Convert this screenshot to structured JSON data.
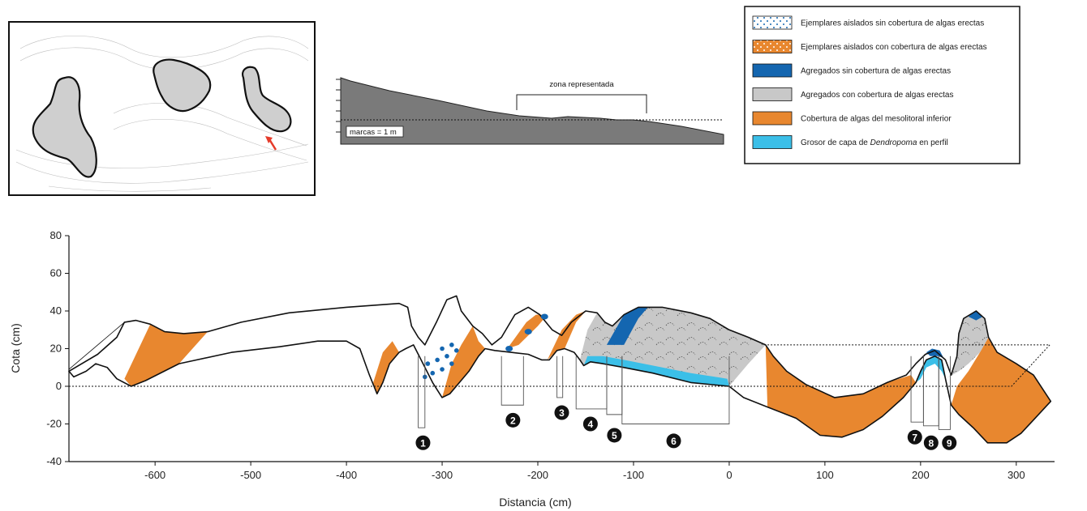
{
  "chart_data": {
    "type": "area",
    "xlabel": "Distancia (cm)",
    "ylabel": "Cota (cm)",
    "xlim": [
      -690,
      340
    ],
    "ylim": [
      -40,
      80
    ],
    "x_ticks": [
      -600,
      -500,
      -400,
      -300,
      -200,
      -100,
      0,
      100,
      200,
      300
    ],
    "y_ticks": [
      80,
      60,
      40,
      20,
      0,
      -20,
      -40
    ],
    "reference_line": 0,
    "profile": [
      {
        "x": -690,
        "y": 8
      },
      {
        "x": -660,
        "y": 17
      },
      {
        "x": -640,
        "y": 26
      },
      {
        "x": -632,
        "y": 34
      },
      {
        "x": -620,
        "y": 35
      },
      {
        "x": -605,
        "y": 33
      },
      {
        "x": -590,
        "y": 29
      },
      {
        "x": -570,
        "y": 28
      },
      {
        "x": -545,
        "y": 29
      },
      {
        "x": -510,
        "y": 34
      },
      {
        "x": -460,
        "y": 39
      },
      {
        "x": -400,
        "y": 42
      },
      {
        "x": -345,
        "y": 44
      },
      {
        "x": -336,
        "y": 42
      },
      {
        "x": -332,
        "y": 32
      },
      {
        "x": -325,
        "y": 26
      },
      {
        "x": -318,
        "y": 22
      },
      {
        "x": -306,
        "y": 34
      },
      {
        "x": -295,
        "y": 46
      },
      {
        "x": -285,
        "y": 48
      },
      {
        "x": -280,
        "y": 40
      },
      {
        "x": -268,
        "y": 32
      },
      {
        "x": -258,
        "y": 28
      },
      {
        "x": -248,
        "y": 22
      },
      {
        "x": -238,
        "y": 26
      },
      {
        "x": -224,
        "y": 38
      },
      {
        "x": -210,
        "y": 42
      },
      {
        "x": -198,
        "y": 38
      },
      {
        "x": -185,
        "y": 30
      },
      {
        "x": -175,
        "y": 27
      },
      {
        "x": -165,
        "y": 34
      },
      {
        "x": -150,
        "y": 40
      },
      {
        "x": -138,
        "y": 39
      },
      {
        "x": -130,
        "y": 34
      },
      {
        "x": -122,
        "y": 32
      },
      {
        "x": -110,
        "y": 38
      },
      {
        "x": -95,
        "y": 42
      },
      {
        "x": -70,
        "y": 42
      },
      {
        "x": -40,
        "y": 39
      },
      {
        "x": -20,
        "y": 36
      },
      {
        "x": 0,
        "y": 30
      },
      {
        "x": 20,
        "y": 26
      },
      {
        "x": 38,
        "y": 22
      },
      {
        "x": 46,
        "y": 16
      },
      {
        "x": 60,
        "y": 8
      },
      {
        "x": 80,
        "y": 1
      },
      {
        "x": 110,
        "y": -6
      },
      {
        "x": 140,
        "y": -4
      },
      {
        "x": 165,
        "y": 2
      },
      {
        "x": 185,
        "y": 6
      },
      {
        "x": 195,
        "y": 12
      },
      {
        "x": 205,
        "y": 17
      },
      {
        "x": 215,
        "y": 19
      },
      {
        "x": 226,
        "y": 14
      },
      {
        "x": 232,
        "y": 6
      },
      {
        "x": 238,
        "y": 16
      },
      {
        "x": 240,
        "y": 28
      },
      {
        "x": 245,
        "y": 36
      },
      {
        "x": 258,
        "y": 40
      },
      {
        "x": 267,
        "y": 36
      },
      {
        "x": 271,
        "y": 26
      },
      {
        "x": 280,
        "y": 18
      },
      {
        "x": 300,
        "y": 12
      },
      {
        "x": 318,
        "y": 6
      },
      {
        "x": 336,
        "y": -8
      },
      {
        "x": 305,
        "y": -25
      },
      {
        "x": 290,
        "y": -30
      },
      {
        "x": 270,
        "y": -30
      },
      {
        "x": 255,
        "y": -22
      },
      {
        "x": 240,
        "y": -15
      },
      {
        "x": 232,
        "y": -10
      },
      {
        "x": 226,
        "y": 4
      },
      {
        "x": 222,
        "y": 14
      },
      {
        "x": 215,
        "y": 16
      },
      {
        "x": 206,
        "y": 14
      },
      {
        "x": 200,
        "y": 8
      },
      {
        "x": 195,
        "y": 2
      },
      {
        "x": 182,
        "y": -6
      },
      {
        "x": 160,
        "y": -16
      },
      {
        "x": 140,
        "y": -23
      },
      {
        "x": 118,
        "y": -27
      },
      {
        "x": 95,
        "y": -26
      },
      {
        "x": 70,
        "y": -17
      },
      {
        "x": 40,
        "y": -11
      },
      {
        "x": 15,
        "y": -6
      },
      {
        "x": 0,
        "y": 0
      },
      {
        "x": -40,
        "y": 2
      },
      {
        "x": -80,
        "y": 7
      },
      {
        "x": -110,
        "y": 10
      },
      {
        "x": -132,
        "y": 12
      },
      {
        "x": -145,
        "y": 13
      },
      {
        "x": -152,
        "y": 11
      },
      {
        "x": -156,
        "y": 14
      },
      {
        "x": -162,
        "y": 18
      },
      {
        "x": -172,
        "y": 20
      },
      {
        "x": -180,
        "y": 19
      },
      {
        "x": -188,
        "y": 14
      },
      {
        "x": -196,
        "y": 14
      },
      {
        "x": -210,
        "y": 17
      },
      {
        "x": -228,
        "y": 18
      },
      {
        "x": -245,
        "y": 19
      },
      {
        "x": -255,
        "y": 20
      },
      {
        "x": -262,
        "y": 16
      },
      {
        "x": -272,
        "y": 8
      },
      {
        "x": -282,
        "y": 2
      },
      {
        "x": -292,
        "y": -4
      },
      {
        "x": -300,
        "y": -6
      },
      {
        "x": -310,
        "y": 2
      },
      {
        "x": -322,
        "y": 14
      },
      {
        "x": -330,
        "y": 22
      },
      {
        "x": -338,
        "y": 20
      },
      {
        "x": -345,
        "y": 18
      },
      {
        "x": -355,
        "y": 12
      },
      {
        "x": -362,
        "y": 2
      },
      {
        "x": -368,
        "y": -4
      },
      {
        "x": -376,
        "y": 6
      },
      {
        "x": -386,
        "y": 20
      },
      {
        "x": -400,
        "y": 24
      },
      {
        "x": -430,
        "y": 24
      },
      {
        "x": -470,
        "y": 21
      },
      {
        "x": -520,
        "y": 18
      },
      {
        "x": -575,
        "y": 12
      },
      {
        "x": -610,
        "y": 3
      },
      {
        "x": -625,
        "y": 0
      },
      {
        "x": -640,
        "y": 4
      },
      {
        "x": -650,
        "y": 10
      },
      {
        "x": -662,
        "y": 12
      },
      {
        "x": -672,
        "y": 8
      },
      {
        "x": -685,
        "y": 5
      }
    ],
    "zones": [
      {
        "type": "cobertura_mesolitoral",
        "polygon": [
          [
            -632,
            4
          ],
          [
            -625,
            0
          ],
          [
            -610,
            3
          ],
          [
            -575,
            12
          ],
          [
            -545,
            29
          ],
          [
            -570,
            28
          ],
          [
            -590,
            29
          ],
          [
            -605,
            33
          ]
        ]
      },
      {
        "type": "cobertura_mesolitoral",
        "polygon": [
          [
            -372,
            2
          ],
          [
            -368,
            -4
          ],
          [
            -362,
            2
          ],
          [
            -355,
            12
          ],
          [
            -345,
            18
          ],
          [
            -352,
            24
          ],
          [
            -362,
            18
          ]
        ]
      },
      {
        "type": "cobertura_mesolitoral",
        "polygon": [
          [
            -300,
            -6
          ],
          [
            -292,
            -4
          ],
          [
            -282,
            2
          ],
          [
            -272,
            8
          ],
          [
            -262,
            16
          ],
          [
            -255,
            20
          ],
          [
            -262,
            24
          ],
          [
            -268,
            32
          ],
          [
            -280,
            22
          ],
          [
            -290,
            12
          ]
        ]
      },
      {
        "type": "cobertura_mesolitoral",
        "polygon": [
          [
            -232,
            20
          ],
          [
            -220,
            22
          ],
          [
            -200,
            32
          ],
          [
            -190,
            38
          ],
          [
            -202,
            38
          ],
          [
            -212,
            34
          ]
        ]
      },
      {
        "type": "cobertura_mesolitoral",
        "polygon": [
          [
            -190,
            14
          ],
          [
            -180,
            19
          ],
          [
            -172,
            20
          ],
          [
            -160,
            34
          ],
          [
            -150,
            40
          ],
          [
            -160,
            38
          ],
          [
            -175,
            30
          ]
        ]
      },
      {
        "type": "cobertura_mesolitoral",
        "polygon": [
          [
            40,
            -11
          ],
          [
            70,
            -17
          ],
          [
            95,
            -26
          ],
          [
            118,
            -27
          ],
          [
            140,
            -23
          ],
          [
            160,
            -16
          ],
          [
            182,
            -6
          ],
          [
            195,
            2
          ],
          [
            190,
            6
          ],
          [
            165,
            2
          ],
          [
            140,
            -4
          ],
          [
            110,
            -6
          ],
          [
            80,
            1
          ],
          [
            60,
            8
          ],
          [
            46,
            16
          ],
          [
            38,
            22
          ]
        ]
      },
      {
        "type": "cobertura_mesolitoral",
        "polygon": [
          [
            232,
            -10
          ],
          [
            240,
            -15
          ],
          [
            255,
            -22
          ],
          [
            270,
            -30
          ],
          [
            290,
            -30
          ],
          [
            305,
            -25
          ],
          [
            336,
            -8
          ],
          [
            318,
            6
          ],
          [
            300,
            12
          ],
          [
            280,
            18
          ],
          [
            271,
            26
          ],
          [
            262,
            18
          ],
          [
            250,
            8
          ],
          [
            238,
            0
          ]
        ]
      },
      {
        "type": "agregados_con_algas",
        "polygon": [
          [
            -152,
            11
          ],
          [
            -145,
            13
          ],
          [
            -132,
            12
          ],
          [
            -110,
            10
          ],
          [
            -80,
            7
          ],
          [
            -40,
            2
          ],
          [
            0,
            0
          ],
          [
            20,
            12
          ],
          [
            38,
            22
          ],
          [
            20,
            26
          ],
          [
            0,
            30
          ],
          [
            -20,
            36
          ],
          [
            -40,
            39
          ],
          [
            -70,
            42
          ],
          [
            -95,
            42
          ],
          [
            -110,
            38
          ],
          [
            -122,
            32
          ],
          [
            -130,
            34
          ],
          [
            -138,
            39
          ],
          [
            -148,
            30
          ],
          [
            -156,
            14
          ]
        ]
      },
      {
        "type": "agregados_con_algas",
        "polygon": [
          [
            226,
            4
          ],
          [
            232,
            6
          ],
          [
            238,
            16
          ],
          [
            240,
            28
          ],
          [
            245,
            36
          ],
          [
            258,
            40
          ],
          [
            267,
            36
          ],
          [
            271,
            26
          ],
          [
            262,
            18
          ],
          [
            250,
            12
          ],
          [
            240,
            8
          ]
        ]
      },
      {
        "type": "agregados_sin_algas",
        "polygon": [
          [
            -128,
            22
          ],
          [
            -110,
            22
          ],
          [
            -95,
            36
          ],
          [
            -85,
            42
          ],
          [
            -95,
            42
          ],
          [
            -110,
            38
          ]
        ]
      },
      {
        "type": "agregados_sin_algas",
        "polygon": [
          [
            206,
            18
          ],
          [
            212,
            20
          ],
          [
            220,
            19
          ],
          [
            224,
            15
          ],
          [
            218,
            16
          ],
          [
            210,
            16
          ]
        ]
      },
      {
        "type": "agregados_sin_algas",
        "polygon": [
          [
            250,
            37
          ],
          [
            258,
            40
          ],
          [
            265,
            37
          ],
          [
            258,
            35
          ]
        ]
      },
      {
        "type": "capa_dendropoma",
        "polygon": [
          [
            -152,
            11
          ],
          [
            -145,
            13
          ],
          [
            -132,
            12
          ],
          [
            -110,
            10
          ],
          [
            -80,
            7
          ],
          [
            -40,
            2
          ],
          [
            0,
            0
          ],
          [
            -2,
            4
          ],
          [
            -40,
            7
          ],
          [
            -80,
            11
          ],
          [
            -110,
            14
          ],
          [
            -132,
            16
          ],
          [
            -148,
            16
          ]
        ]
      },
      {
        "type": "capa_dendropoma",
        "polygon": [
          [
            195,
            2
          ],
          [
            200,
            8
          ],
          [
            206,
            14
          ],
          [
            215,
            16
          ],
          [
            222,
            14
          ],
          [
            226,
            4
          ],
          [
            222,
            8
          ],
          [
            215,
            12
          ],
          [
            206,
            10
          ],
          [
            200,
            4
          ]
        ]
      }
    ],
    "isolated_specimens_without_algae": [
      [
        -318,
        5
      ],
      [
        -310,
        7
      ],
      [
        -300,
        9
      ],
      [
        -290,
        12
      ],
      [
        -315,
        12
      ],
      [
        -305,
        14
      ],
      [
        -295,
        16
      ],
      [
        -285,
        19
      ],
      [
        -300,
        20
      ],
      [
        -290,
        22
      ]
    ],
    "isolated_specimens_small_blue": [
      [
        -230,
        20
      ],
      [
        -210,
        29
      ],
      [
        -193,
        37
      ]
    ],
    "measurement_brackets": [
      {
        "id": "1",
        "x0": -325,
        "x1": -318,
        "depth": -22
      },
      {
        "id": "2",
        "x0": -238,
        "x1": -215,
        "depth": -10
      },
      {
        "id": "3",
        "x0": -180,
        "x1": -174,
        "depth": -6
      },
      {
        "id": "4",
        "x0": -160,
        "x1": -128,
        "depth": -12
      },
      {
        "id": "5",
        "x0": -128,
        "x1": -112,
        "depth": -15
      },
      {
        "id": "6",
        "x0": -112,
        "x1": 0,
        "depth": -20
      },
      {
        "id": "7",
        "x0": 190,
        "x1": 203,
        "depth": -19
      },
      {
        "id": "8",
        "x0": 203,
        "x1": 219,
        "depth": -21
      },
      {
        "id": "9",
        "x0": 219,
        "x1": 231,
        "depth": -23
      }
    ],
    "marker_positions": [
      {
        "id": "1",
        "x": -320,
        "y": -30
      },
      {
        "id": "2",
        "x": -226,
        "y": -18
      },
      {
        "id": "3",
        "x": -175,
        "y": -14
      },
      {
        "id": "4",
        "x": -145,
        "y": -20
      },
      {
        "id": "5",
        "x": -120,
        "y": -26
      },
      {
        "id": "6",
        "x": -58,
        "y": -29
      },
      {
        "id": "7",
        "x": 194,
        "y": -27
      },
      {
        "id": "8",
        "x": 211,
        "y": -30
      },
      {
        "id": "9",
        "x": 230,
        "y": -30
      }
    ]
  },
  "legend": {
    "items": [
      {
        "key": "ejemplares_sin_algas",
        "label": "Ejemplares aislados sin cobertura de algas erectas",
        "color": "#ffffff",
        "pattern": "dots-blue"
      },
      {
        "key": "ejemplares_con_algas",
        "label": "Ejemplares aislados con cobertura de algas erectas",
        "color": "#e8872f",
        "pattern": "dots-white"
      },
      {
        "key": "agregados_sin_algas",
        "label": "Agregados sin cobertura de algas erectas",
        "color": "#1466b0",
        "pattern": "none"
      },
      {
        "key": "agregados_con_algas",
        "label": "Agregados con cobertura de algas erectas",
        "color": "#c8c8c8",
        "pattern": "none"
      },
      {
        "key": "cobertura_mesolitoral",
        "label": "Cobertura de algas del mesolitoral inferior",
        "color": "#e8872f",
        "pattern": "none"
      },
      {
        "key": "grosor_capa",
        "label_prefix": "Grosor de capa de ",
        "label_italic": "Dendropoma",
        "label_suffix": " en perfil",
        "color": "#3bbfe8",
        "pattern": "none"
      }
    ]
  },
  "profile_inset": {
    "zone_label": "zona representada",
    "scale_label": "marcas = 1 m"
  },
  "colors": {
    "orange": "#e8872f",
    "grey": "#c8c8c8",
    "dark_blue": "#1466b0",
    "light_blue": "#3bbfe8",
    "profile_grey": "#777777"
  },
  "icons": {
    "map_arrow": "arrow-up-left-icon"
  }
}
